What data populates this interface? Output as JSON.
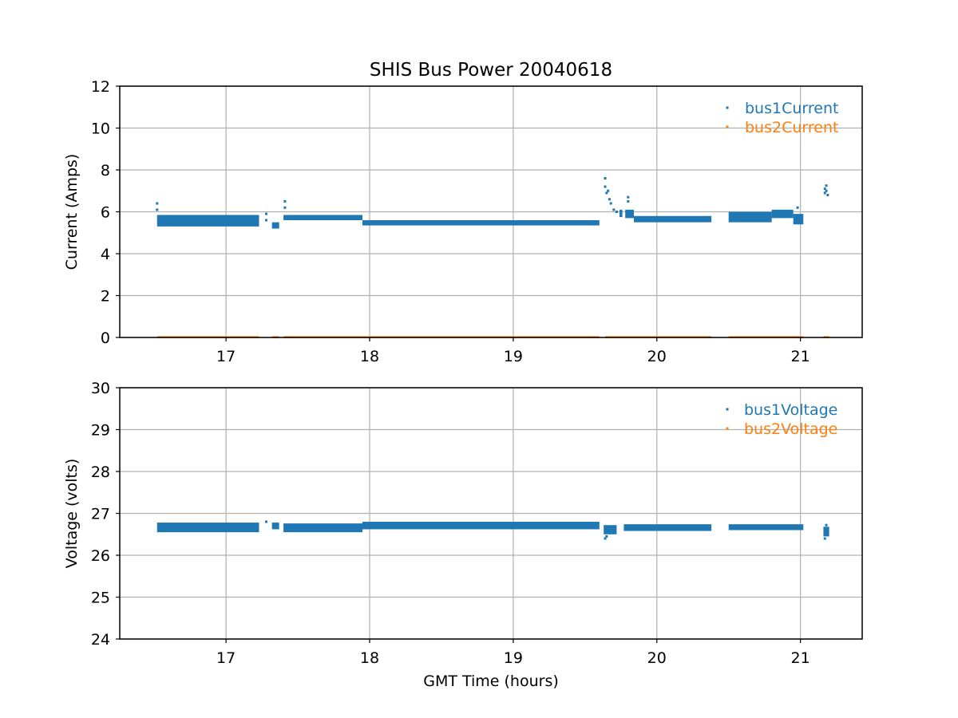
{
  "chart_data": [
    {
      "type": "scatter",
      "title": "SHIS Bus Power 20040618",
      "xlabel": "",
      "ylabel": "Current (Amps)",
      "xlim": [
        16.26,
        21.43
      ],
      "ylim": [
        0,
        12
      ],
      "xticks": [
        "17",
        "18",
        "19",
        "20",
        "21"
      ],
      "yticks": [
        "0",
        "2",
        "4",
        "6",
        "8",
        "10",
        "12"
      ],
      "grid": true,
      "legend_position": "top-right",
      "series": [
        {
          "name": "bus1Current",
          "color": "#1f77b4",
          "segments": [
            {
              "x0": 16.52,
              "x1": 17.23,
              "y0": 5.3,
              "y1": 5.85
            },
            {
              "x0": 17.32,
              "x1": 17.37,
              "y0": 5.2,
              "y1": 5.5
            },
            {
              "x0": 17.4,
              "x1": 17.95,
              "y0": 5.6,
              "y1": 5.85
            },
            {
              "x0": 17.95,
              "x1": 19.6,
              "y0": 5.35,
              "y1": 5.6
            },
            {
              "x0": 19.74,
              "x1": 19.76,
              "y0": 5.75,
              "y1": 6.1
            },
            {
              "x0": 19.78,
              "x1": 19.84,
              "y0": 5.7,
              "y1": 6.1
            },
            {
              "x0": 19.84,
              "x1": 20.38,
              "y0": 5.5,
              "y1": 5.8
            },
            {
              "x0": 20.5,
              "x1": 20.8,
              "y0": 5.5,
              "y1": 6.0
            },
            {
              "x0": 20.8,
              "x1": 20.95,
              "y0": 5.7,
              "y1": 6.1
            },
            {
              "x0": 20.95,
              "x1": 21.02,
              "y0": 5.4,
              "y1": 5.9
            }
          ],
          "points": [
            [
              16.52,
              6.4
            ],
            [
              16.52,
              6.1
            ],
            [
              17.28,
              5.9
            ],
            [
              17.28,
              5.6
            ],
            [
              17.41,
              6.5
            ],
            [
              17.41,
              6.2
            ],
            [
              19.64,
              7.6
            ],
            [
              19.64,
              7.2
            ],
            [
              19.65,
              6.9
            ],
            [
              19.66,
              7.0
            ],
            [
              19.67,
              6.6
            ],
            [
              19.68,
              6.4
            ],
            [
              19.7,
              6.1
            ],
            [
              19.72,
              6.0
            ],
            [
              19.8,
              6.7
            ],
            [
              19.8,
              6.5
            ],
            [
              20.98,
              6.2
            ],
            [
              21.17,
              6.9
            ],
            [
              21.17,
              7.1
            ],
            [
              21.18,
              7.25
            ],
            [
              21.18,
              7.0
            ],
            [
              21.19,
              6.8
            ]
          ]
        },
        {
          "name": "bus2Current",
          "color": "#ff7f0e",
          "segments": [
            {
              "x0": 16.52,
              "x1": 17.23,
              "y0": 0.0,
              "y1": 0.06
            },
            {
              "x0": 17.32,
              "x1": 17.37,
              "y0": 0.0,
              "y1": 0.06
            },
            {
              "x0": 17.4,
              "x1": 19.6,
              "y0": 0.0,
              "y1": 0.06
            },
            {
              "x0": 19.64,
              "x1": 20.38,
              "y0": 0.0,
              "y1": 0.06
            },
            {
              "x0": 20.5,
              "x1": 21.02,
              "y0": 0.0,
              "y1": 0.06
            },
            {
              "x0": 21.16,
              "x1": 21.2,
              "y0": 0.0,
              "y1": 0.06
            }
          ],
          "points": []
        }
      ]
    },
    {
      "type": "scatter",
      "title": "",
      "xlabel": "GMT Time (hours)",
      "ylabel": "Voltage (volts)",
      "xlim": [
        16.26,
        21.43
      ],
      "ylim": [
        24,
        30
      ],
      "xticks": [
        "17",
        "18",
        "19",
        "20",
        "21"
      ],
      "yticks": [
        "24",
        "25",
        "26",
        "27",
        "28",
        "29",
        "30"
      ],
      "grid": true,
      "legend_position": "top-right",
      "series": [
        {
          "name": "bus1Voltage",
          "color": "#1f77b4",
          "segments": [
            {
              "x0": 16.52,
              "x1": 17.23,
              "y0": 26.55,
              "y1": 26.78
            },
            {
              "x0": 17.32,
              "x1": 17.37,
              "y0": 26.62,
              "y1": 26.78
            },
            {
              "x0": 17.4,
              "x1": 17.95,
              "y0": 26.55,
              "y1": 26.76
            },
            {
              "x0": 17.95,
              "x1": 19.6,
              "y0": 26.62,
              "y1": 26.8
            },
            {
              "x0": 19.63,
              "x1": 19.72,
              "y0": 26.5,
              "y1": 26.72
            },
            {
              "x0": 19.77,
              "x1": 20.38,
              "y0": 26.58,
              "y1": 26.74
            },
            {
              "x0": 20.5,
              "x1": 21.02,
              "y0": 26.6,
              "y1": 26.74
            },
            {
              "x0": 21.16,
              "x1": 21.2,
              "y0": 26.45,
              "y1": 26.68
            }
          ],
          "points": [
            [
              19.64,
              26.4
            ],
            [
              19.65,
              26.45
            ],
            [
              21.17,
              26.4
            ],
            [
              21.18,
              26.72
            ],
            [
              17.28,
              26.8
            ]
          ]
        },
        {
          "name": "bus2Voltage",
          "color": "#ff7f0e",
          "segments": [],
          "points": []
        }
      ]
    }
  ]
}
